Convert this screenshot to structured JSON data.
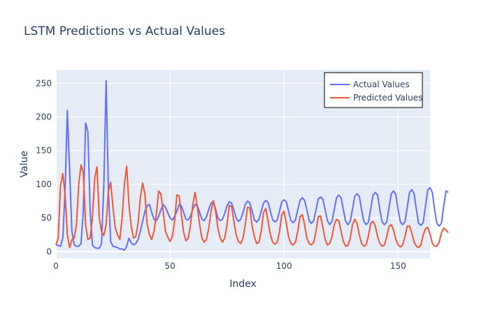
{
  "chart_data": {
    "type": "line",
    "title": "LSTM Predictions vs Actual Values",
    "xlabel": "Index",
    "ylabel": "Value",
    "xlim": [
      0,
      164
    ],
    "ylim": [
      -10,
      270
    ],
    "x_ticks": [
      0,
      50,
      100,
      150
    ],
    "y_ticks": [
      0,
      50,
      100,
      150,
      200,
      250
    ],
    "grid": true,
    "legend_position": "top-right",
    "series": [
      {
        "name": "Actual Values",
        "color": "#636efa",
        "values": [
          10,
          9,
          8,
          20,
          90,
          210,
          120,
          30,
          10,
          8,
          8,
          12,
          60,
          191,
          178,
          60,
          10,
          6,
          5,
          5,
          12,
          100,
          254,
          90,
          15,
          8,
          7,
          6,
          4,
          4,
          2,
          8,
          20,
          13,
          10,
          12,
          18,
          30,
          45,
          60,
          68,
          70,
          58,
          48,
          46,
          52,
          62,
          70,
          66,
          58,
          50,
          47,
          52,
          60,
          70,
          68,
          58,
          48,
          47,
          53,
          63,
          70,
          68,
          58,
          48,
          46,
          52,
          63,
          72,
          74,
          63,
          50,
          46,
          48,
          57,
          68,
          74,
          72,
          62,
          50,
          45,
          48,
          58,
          70,
          75,
          72,
          60,
          47,
          44,
          48,
          60,
          72,
          76,
          73,
          60,
          47,
          44,
          47,
          60,
          74,
          77,
          74,
          60,
          46,
          43,
          47,
          62,
          76,
          80,
          76,
          62,
          46,
          42,
          46,
          62,
          78,
          81,
          78,
          62,
          46,
          40,
          45,
          62,
          80,
          84,
          80,
          62,
          45,
          40,
          45,
          63,
          82,
          86,
          82,
          62,
          45,
          40,
          44,
          64,
          84,
          88,
          84,
          62,
          44,
          40,
          44,
          65,
          86,
          90,
          85,
          62,
          44,
          40,
          44,
          66,
          88,
          92,
          86,
          62,
          42,
          39,
          43,
          68,
          92,
          95,
          88,
          62,
          42,
          38,
          42,
          68,
          90,
          88
        ]
      },
      {
        "name": "Predicted Values",
        "color": "#ef553b",
        "values": [
          10,
          20,
          98,
          116,
          85,
          25,
          6,
          18,
          20,
          40,
          100,
          129,
          117,
          40,
          18,
          20,
          50,
          110,
          126,
          50,
          30,
          24,
          40,
          90,
          103,
          66,
          35,
          25,
          18,
          50,
          100,
          127,
          70,
          38,
          20,
          22,
          42,
          80,
          102,
          86,
          40,
          25,
          18,
          30,
          55,
          90,
          86,
          60,
          30,
          22,
          15,
          22,
          45,
          84,
          83,
          55,
          28,
          16,
          20,
          40,
          70,
          88,
          66,
          40,
          20,
          14,
          18,
          35,
          60,
          76,
          60,
          35,
          20,
          14,
          20,
          40,
          69,
          67,
          45,
          25,
          15,
          12,
          20,
          40,
          66,
          65,
          38,
          22,
          12,
          14,
          30,
          58,
          64,
          45,
          25,
          14,
          11,
          14,
          30,
          55,
          60,
          42,
          22,
          12,
          10,
          14,
          30,
          52,
          55,
          40,
          20,
          12,
          10,
          14,
          30,
          52,
          53,
          36,
          18,
          10,
          12,
          22,
          40,
          48,
          46,
          30,
          15,
          8,
          9,
          20,
          40,
          48,
          42,
          25,
          12,
          8,
          10,
          24,
          42,
          45,
          38,
          22,
          12,
          8,
          10,
          22,
          38,
          40,
          32,
          18,
          10,
          7,
          10,
          22,
          38,
          38,
          28,
          14,
          8,
          6,
          10,
          25,
          34,
          36,
          26,
          12,
          8,
          8,
          14,
          28,
          35,
          32,
          28
        ]
      }
    ]
  }
}
